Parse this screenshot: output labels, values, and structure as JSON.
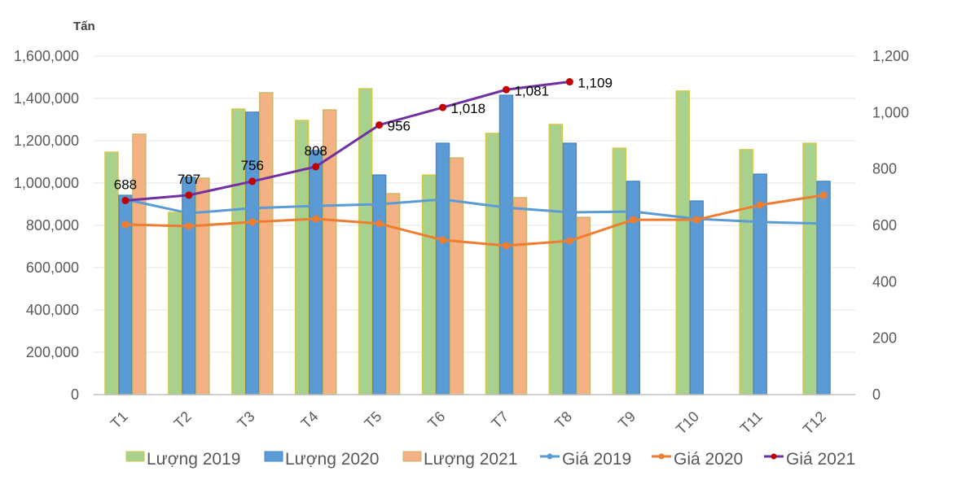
{
  "chart_data": {
    "type": "bar",
    "title": "",
    "y_unit_label": "Tấn",
    "categories": [
      "T1",
      "T2",
      "T3",
      "T4",
      "T5",
      "T6",
      "T7",
      "T8",
      "T9",
      "T10",
      "T11",
      "T12"
    ],
    "ylim": [
      0,
      1600000
    ],
    "y_ticks": [
      0,
      200000,
      400000,
      600000,
      800000,
      1000000,
      1200000,
      1400000,
      1600000
    ],
    "y_tick_labels": [
      "0",
      "200,000",
      "400,000",
      "600,000",
      "800,000",
      "1,000,000",
      "1,200,000",
      "1,400,000",
      "1,600,000"
    ],
    "y2lim": [
      0,
      1200
    ],
    "y2_ticks": [
      0,
      200,
      400,
      600,
      800,
      1000,
      1200
    ],
    "y2_tick_labels": [
      "0",
      "200",
      "400",
      "600",
      "800",
      "1,000",
      "1,200"
    ],
    "grid": true,
    "legend_position": "bottom",
    "bar_series": [
      {
        "name": "Lượng 2019",
        "color": "#A9D18E",
        "stroke": "#D4C84A",
        "values": [
          1146000,
          861000,
          1350000,
          1296000,
          1446000,
          1038000,
          1235000,
          1277000,
          1165000,
          1435000,
          1158000,
          1188000
        ]
      },
      {
        "name": "Lượng 2020",
        "color": "#5B9BD5",
        "stroke": "#4A8AC8",
        "values": [
          942000,
          1027000,
          1335000,
          1154000,
          1038000,
          1188000,
          1415000,
          1188000,
          1008000,
          915000,
          1042000,
          1008000
        ]
      },
      {
        "name": "Lượng 2021",
        "color": "#F4B183",
        "stroke": "#C9B86A",
        "values": [
          1231000,
          1023000,
          1427000,
          1346000,
          950000,
          1119000,
          931000,
          838000,
          null,
          null,
          null,
          null
        ]
      }
    ],
    "line_series": [
      {
        "name": "Giá 2019",
        "color": "#5B9BD5",
        "marker": "none",
        "axis": "right",
        "values": [
          692,
          643,
          661,
          669,
          675,
          692,
          663,
          646,
          649,
          623,
          612,
          606
        ]
      },
      {
        "name": "Giá 2020",
        "color": "#ED7D31",
        "marker": "circle",
        "marker_color": "#ED7D31",
        "axis": "right",
        "values": [
          603,
          597,
          612,
          623,
          606,
          548,
          528,
          545,
          620,
          620,
          672,
          707
        ]
      },
      {
        "name": "Giá 2021",
        "color": "#7030A0",
        "marker": "circle",
        "marker_color": "#C00000",
        "axis": "right",
        "values": [
          688,
          707,
          756,
          808,
          956,
          1018,
          1081,
          1109,
          null,
          null,
          null,
          null
        ],
        "data_labels": [
          "688",
          "707",
          "756",
          "808",
          "956",
          "1,018",
          "1,081",
          "1,109"
        ]
      }
    ],
    "legend": [
      "Lượng 2019",
      "Lượng 2020",
      "Lượng 2021",
      "Giá 2019",
      "Giá 2020",
      "Giá 2021"
    ]
  }
}
